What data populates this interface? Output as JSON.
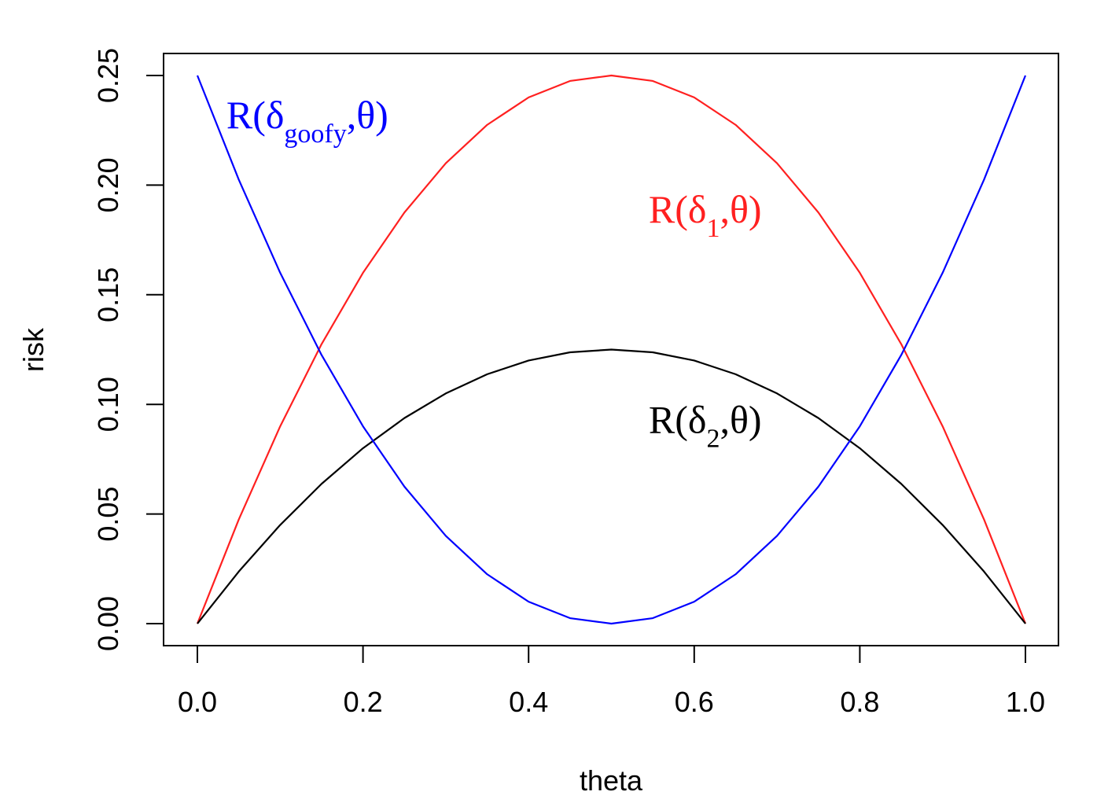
{
  "chart_data": {
    "type": "line",
    "xlabel": "theta",
    "ylabel": "risk",
    "xlim": [
      0,
      1
    ],
    "ylim": [
      0,
      0.25
    ],
    "xticks": [
      "0.0",
      "0.2",
      "0.4",
      "0.6",
      "0.8",
      "1.0"
    ],
    "xtick_values": [
      0,
      0.2,
      0.4,
      0.6,
      0.8,
      1.0
    ],
    "yticks": [
      "0.00",
      "0.05",
      "0.10",
      "0.15",
      "0.20",
      "0.25"
    ],
    "ytick_values": [
      0,
      0.05,
      0.1,
      0.15,
      0.2,
      0.25
    ],
    "grid": false,
    "x": [
      0,
      0.05,
      0.1,
      0.15,
      0.2,
      0.25,
      0.3,
      0.35,
      0.4,
      0.45,
      0.5,
      0.55,
      0.6,
      0.65,
      0.7,
      0.75,
      0.8,
      0.85,
      0.9,
      0.95,
      1.0
    ],
    "series": [
      {
        "color": "#ff2020",
        "values": [
          0,
          0.0475,
          0.09,
          0.1275,
          0.16,
          0.1875,
          0.21,
          0.2275,
          0.24,
          0.2475,
          0.25,
          0.2475,
          0.24,
          0.2275,
          0.21,
          0.1875,
          0.16,
          0.1275,
          0.09,
          0.0475,
          0
        ]
      },
      {
        "color": "#000000",
        "values": [
          0,
          0.02375,
          0.045,
          0.06375,
          0.08,
          0.09375,
          0.105,
          0.11375,
          0.12,
          0.12375,
          0.125,
          0.12375,
          0.12,
          0.11375,
          0.105,
          0.09375,
          0.08,
          0.06375,
          0.045,
          0.02375,
          0
        ]
      },
      {
        "color": "#0000ff",
        "values": [
          0.25,
          0.2025,
          0.16,
          0.1225,
          0.09,
          0.0625,
          0.04,
          0.0225,
          0.01,
          0.0025,
          0,
          0.0025,
          0.01,
          0.0225,
          0.04,
          0.0625,
          0.09,
          0.1225,
          0.16,
          0.2025,
          0.25
        ]
      }
    ],
    "annotations": [
      {
        "main": "R(δ",
        "sub": "goofy",
        "tail": ",θ)",
        "color": "#0000ff",
        "x": 0.035,
        "y": 0.226
      },
      {
        "main": "R(δ",
        "sub": "1",
        "tail": ",θ)",
        "color": "#ff2020",
        "x": 0.545,
        "y": 0.183
      },
      {
        "main": "R(δ",
        "sub": "2",
        "tail": ",θ)",
        "color": "#000000",
        "x": 0.545,
        "y": 0.087
      }
    ]
  }
}
